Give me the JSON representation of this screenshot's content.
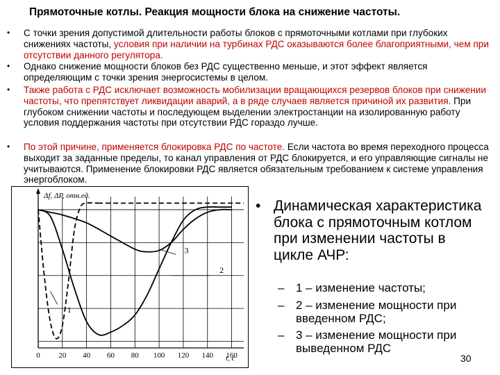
{
  "slide": {
    "title": "Прямоточные котлы. Реакция мощности блока на снижение частоты.",
    "page_number": "30",
    "bullet_glyph": "•",
    "dash_glyph": "–"
  },
  "bullets": [
    {
      "part1": "С точки зрения допустимой длительности работы блоков с прямоточными котлами при глубоких снижениях частоты, ",
      "part2_red": "условия при наличии на турбинах РДС оказываются более благоприятными, чем при отсутствии данного регулятора."
    },
    {
      "part1": "Однако снижение мощности блоков без РДС существенно меньше, и этот эффект является определяющим с точки зрения энергосистемы в целом."
    },
    {
      "part1_red": "Также работа с РДС исключает возможность мобилизации вращающихся резервов блоков при снижении частоты, что препятствует ликвидации аварий, а в ряде случаев является причиной их развития.",
      "part2": " При глубоком снижении частоты и последующем выделении электростанции на изолированную работу условия поддержания частоты при отсутствии РДС гораздо лучше."
    },
    {
      "part1_red": "По этой причине, применяется блокировка РДС по частоте.",
      "part2": " Если частота во время переходного процесса выходит за заданные пределы, то канал управления от РДС блокируется, и его управляющие сигналы не учитываются. Применение блокировки РДС является обязательным требованием к системе управления энергоблоком."
    }
  ],
  "legend": {
    "main": "Динамическая характеристика блока с прямоточным котлом при изменении частоты в цикле АЧР:",
    "items": [
      "1 – изменение частоты;",
      "2 – изменение мощности при введенном РДС;",
      "3 – изменение мощности при выведенном РДС"
    ]
  },
  "chart_data": {
    "type": "line",
    "ylabel": "Δf, ΔP, отн.ед.",
    "xlabel": "t, с",
    "x_ticks": [
      "0",
      "20",
      "40",
      "60",
      "80",
      "100",
      "120",
      "140",
      "160"
    ],
    "xlim": [
      0,
      170
    ],
    "series": [
      {
        "name": "1",
        "style": "dashed",
        "x": [
          0,
          5,
          10,
          15,
          20,
          25,
          30,
          35,
          40,
          50,
          60,
          170
        ],
        "y": [
          0,
          -0.5,
          -0.85,
          -0.98,
          -0.88,
          -0.55,
          -0.15,
          0.02,
          0.05,
          0.05,
          0.05,
          0.05
        ]
      },
      {
        "name": "2",
        "style": "solid",
        "x": [
          0,
          10,
          20,
          30,
          40,
          50,
          60,
          70,
          80,
          90,
          100,
          110,
          120,
          130,
          140,
          150,
          160
        ],
        "y": [
          0,
          -0.05,
          -0.3,
          -0.6,
          -0.85,
          -0.95,
          -0.93,
          -0.88,
          -0.8,
          -0.65,
          -0.45,
          -0.25,
          -0.08,
          0.0,
          0.02,
          0.02,
          0.02
        ]
      },
      {
        "name": "3",
        "style": "solid",
        "x": [
          0,
          10,
          20,
          40,
          60,
          80,
          90,
          100,
          110,
          120,
          130,
          140,
          150,
          160
        ],
        "y": [
          0,
          -0.02,
          -0.04,
          -0.1,
          -0.2,
          -0.3,
          -0.32,
          -0.31,
          -0.25,
          -0.15,
          -0.07,
          -0.02,
          0.0,
          0.0
        ]
      }
    ],
    "grid": true
  }
}
